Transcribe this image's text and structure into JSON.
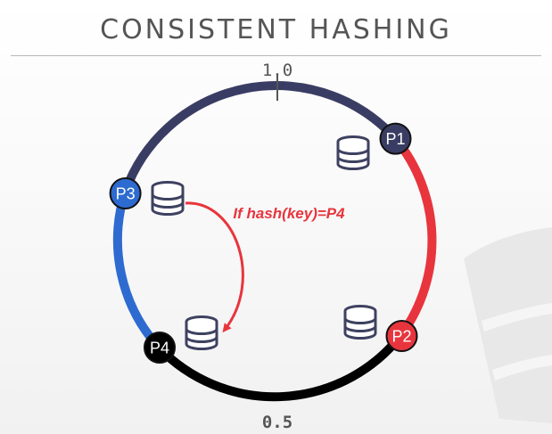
{
  "title": "CONSISTENT HASHING",
  "ring": {
    "top_label": "1.0",
    "bottom_label": "0.5",
    "segment_colors": [
      "#3a3d63",
      "#e8353d",
      "#000000",
      "#2d6bd0"
    ]
  },
  "nodes": [
    {
      "label": "P1",
      "color": "#3a3d63"
    },
    {
      "label": "P2",
      "color": "#e8353d"
    },
    {
      "label": "P3",
      "color": "#2d6bd0"
    },
    {
      "label": "P4",
      "color": "#000000"
    }
  ],
  "annotation": {
    "text": "If hash(key)=P4",
    "color": "#e8353d"
  },
  "icons": [
    "database-icon",
    "database-icon",
    "database-icon",
    "database-icon"
  ]
}
